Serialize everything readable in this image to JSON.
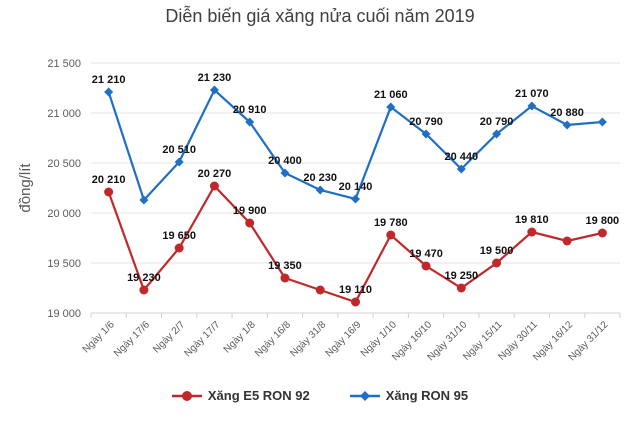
{
  "chart_data": {
    "type": "line",
    "title": "Diễn biến giá xăng nửa cuối năm 2019",
    "ylabel": "đồng/lít",
    "xlabel": "",
    "ylim": [
      19000,
      21500
    ],
    "yticks": [
      19000,
      19500,
      20000,
      20500,
      21000,
      21500
    ],
    "ytick_labels": [
      "19 000",
      "19 500",
      "20 000",
      "20 500",
      "21 000",
      "21 500"
    ],
    "grid": true,
    "legend_position": "bottom",
    "categories": [
      "Ngày 1/6",
      "Ngày 17/6",
      "Ngày 2/7",
      "Ngày 17/7",
      "Ngày 1/8",
      "Ngày 16/8",
      "Ngày 31/8",
      "Ngày 16/9",
      "Ngày 1/10",
      "Ngày 16/10",
      "Ngày 31/10",
      "Ngày 15/11",
      "Ngày 30/11",
      "Ngày 16/12",
      "Ngày 31/12"
    ],
    "series": [
      {
        "name": "Xăng E5 RON 92",
        "color": "#c0292b",
        "marker": "circle",
        "values": [
          20210,
          19230,
          19650,
          20270,
          19900,
          19350,
          19230,
          19110,
          19780,
          19470,
          19250,
          19500,
          19810,
          19720,
          19800
        ],
        "labels": [
          "20 210",
          "19 230",
          "19 650",
          "20 270",
          "19 900",
          "19 350",
          "",
          "19 110",
          "19 780",
          "19 470",
          "19 250",
          "19 500",
          "19 810",
          "",
          "19 800"
        ]
      },
      {
        "name": "Xăng RON 95",
        "color": "#1f6fc5",
        "marker": "diamond",
        "values": [
          21210,
          20130,
          20510,
          21230,
          20910,
          20400,
          20230,
          20140,
          21060,
          20790,
          20440,
          20790,
          21070,
          20880,
          20910
        ],
        "labels": [
          "21 210",
          "",
          "20 510",
          "21 230",
          "20 910",
          "20 400",
          "20 230",
          "20 140",
          "21 060",
          "20 790",
          "20 440",
          "20 790",
          "21 070",
          "20 880",
          ""
        ]
      }
    ]
  }
}
